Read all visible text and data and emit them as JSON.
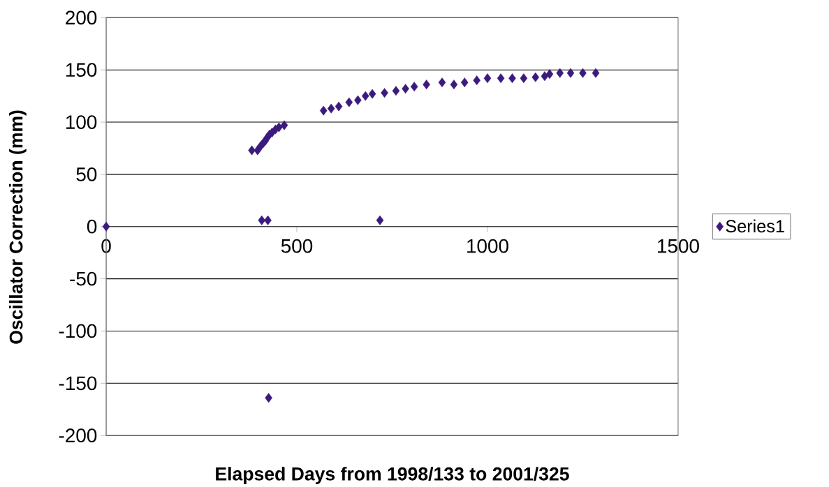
{
  "chart_data": {
    "type": "scatter",
    "xlabel": "Elapsed Days from 1998/133 to 2001/325",
    "ylabel": "Oscillator Correction (mm)",
    "xlim": [
      0,
      1500
    ],
    "xticks": [
      0,
      500,
      1000,
      1500
    ],
    "ylim": [
      -200,
      200
    ],
    "yticks": [
      -200,
      -150,
      -100,
      -50,
      0,
      50,
      100,
      150,
      200
    ],
    "grid": "y",
    "legend": "right",
    "marker": "diamond",
    "series": [
      {
        "name": "Series1",
        "color": "#3c1a7d",
        "x": [
          382,
          397,
          405,
          412,
          417,
          422,
          428,
          435,
          444,
          453,
          467,
          570,
          590,
          610,
          637,
          660,
          680,
          698,
          730,
          760,
          785,
          808,
          840,
          881,
          912,
          940,
          972,
          1000,
          1035,
          1065,
          1095,
          1126,
          1150,
          1163,
          1190,
          1218,
          1250,
          1284,
          0,
          408,
          424,
          718,
          426
        ],
        "values": [
          73,
          73,
          77,
          80,
          82,
          85,
          88,
          90,
          93,
          95,
          97,
          111,
          113,
          115,
          119,
          121,
          125,
          127,
          128,
          130,
          132,
          134,
          136,
          138,
          136,
          138,
          140,
          142,
          142,
          142,
          142,
          143,
          144,
          146,
          147,
          147,
          147,
          147,
          0,
          6,
          6,
          6,
          -164
        ]
      }
    ]
  }
}
